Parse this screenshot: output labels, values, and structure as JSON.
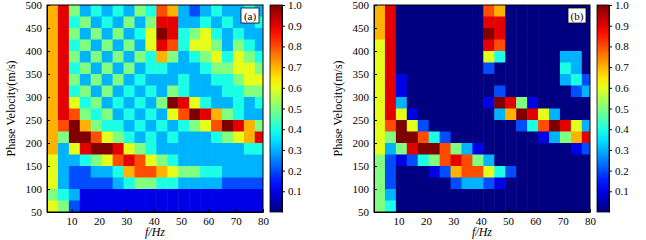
{
  "chart_data": [
    {
      "type": "heatmap",
      "annotation": "(a)",
      "x_label": "f/Hz",
      "y_label": "Phase Velocity(m/s)",
      "xlim": [
        1,
        80
      ],
      "xticks": [
        10,
        20,
        30,
        40,
        50,
        60,
        70,
        80
      ],
      "ylim": [
        50,
        500
      ],
      "yticks": [
        50,
        100,
        150,
        200,
        250,
        300,
        350,
        400,
        450,
        500
      ],
      "colorbar_range": [
        0,
        1
      ],
      "colorbar_ticks": [
        0.1,
        0.2,
        0.3,
        0.4,
        0.5,
        0.6,
        0.7,
        0.8,
        0.9,
        {
          "value": 1,
          "label": "1.0"
        }
      ],
      "x": [
        3,
        7,
        11,
        15,
        19,
        23,
        27,
        31,
        35,
        39,
        43,
        47,
        51,
        55,
        59,
        63,
        67,
        71,
        75,
        79
      ],
      "y": [
        487.5,
        462.5,
        437.5,
        412.5,
        387.5,
        362.5,
        337.5,
        312.5,
        287.5,
        262.5,
        237.5,
        212.5,
        187.5,
        162.5,
        137.5,
        112.5,
        87.5,
        62.5
      ],
      "z": [
        [
          0.7,
          0.9,
          0.5,
          0.3,
          0.4,
          0.3,
          0.4,
          0.3,
          0.5,
          0.4,
          0.8,
          0.7,
          0.3,
          0.2,
          0.3,
          0.4,
          0.3,
          0.3,
          0.4,
          0.3
        ],
        [
          0.7,
          0.9,
          0.4,
          0.5,
          0.3,
          0.4,
          0.3,
          0.5,
          0.3,
          0.5,
          0.9,
          0.9,
          0.3,
          0.3,
          0.4,
          0.3,
          0.4,
          0.3,
          0.3,
          0.4
        ],
        [
          0.7,
          0.9,
          0.5,
          0.3,
          0.5,
          0.3,
          0.5,
          0.3,
          0.4,
          0.6,
          1.0,
          0.9,
          0.4,
          0.5,
          0.6,
          0.4,
          0.3,
          0.4,
          0.3,
          0.3
        ],
        [
          0.7,
          0.9,
          0.4,
          0.5,
          0.3,
          0.5,
          0.3,
          0.5,
          0.3,
          0.6,
          0.9,
          0.8,
          0.4,
          0.6,
          0.6,
          0.5,
          0.3,
          0.5,
          0.4,
          0.3
        ],
        [
          0.7,
          0.9,
          0.5,
          0.3,
          0.5,
          0.3,
          0.5,
          0.3,
          0.5,
          0.4,
          0.7,
          0.5,
          0.3,
          0.4,
          0.5,
          0.6,
          0.4,
          0.6,
          0.5,
          0.4
        ],
        [
          0.7,
          0.9,
          0.4,
          0.5,
          0.3,
          0.5,
          0.3,
          0.5,
          0.3,
          0.4,
          0.4,
          0.3,
          0.3,
          0.3,
          0.4,
          0.5,
          0.5,
          0.6,
          0.6,
          0.5
        ],
        [
          0.7,
          0.9,
          0.5,
          0.3,
          0.5,
          0.3,
          0.5,
          0.3,
          0.4,
          0.3,
          0.3,
          0.3,
          0.4,
          0.3,
          0.3,
          0.4,
          0.4,
          0.5,
          0.6,
          0.6
        ],
        [
          0.7,
          0.9,
          0.4,
          0.5,
          0.3,
          0.5,
          0.3,
          0.4,
          0.3,
          0.4,
          0.3,
          0.5,
          0.4,
          0.3,
          0.3,
          0.3,
          0.4,
          0.4,
          0.5,
          0.5
        ],
        [
          0.7,
          0.9,
          0.6,
          0.4,
          0.5,
          0.3,
          0.4,
          0.3,
          0.4,
          0.3,
          0.5,
          1.0,
          0.9,
          0.6,
          0.4,
          0.3,
          0.3,
          0.4,
          0.3,
          0.4
        ],
        [
          0.7,
          0.9,
          0.8,
          0.5,
          0.4,
          0.5,
          0.3,
          0.4,
          0.3,
          0.4,
          0.3,
          0.6,
          0.8,
          1.0,
          0.9,
          0.7,
          0.5,
          0.4,
          0.3,
          0.3
        ],
        [
          0.7,
          0.8,
          1.0,
          0.7,
          0.5,
          0.4,
          0.4,
          0.3,
          0.4,
          0.3,
          0.4,
          0.3,
          0.4,
          0.5,
          0.6,
          0.8,
          1.0,
          0.9,
          0.7,
          0.5
        ],
        [
          0.7,
          0.5,
          1.0,
          1.0,
          0.8,
          0.6,
          0.5,
          0.4,
          0.3,
          0.4,
          0.3,
          0.4,
          0.3,
          0.3,
          0.3,
          0.4,
          0.5,
          0.6,
          0.7,
          0.9
        ],
        [
          0.7,
          0.3,
          0.6,
          0.9,
          1.0,
          1.0,
          0.9,
          0.6,
          0.5,
          0.4,
          0.3,
          0.3,
          0.3,
          0.3,
          0.3,
          0.3,
          0.3,
          0.3,
          0.4,
          0.4
        ],
        [
          0.6,
          0.3,
          0.3,
          0.4,
          0.5,
          0.6,
          0.8,
          0.9,
          0.8,
          0.6,
          0.5,
          0.4,
          0.3,
          0.3,
          0.3,
          0.3,
          0.3,
          0.3,
          0.3,
          0.3
        ],
        [
          0.6,
          0.3,
          0.2,
          0.2,
          0.3,
          0.3,
          0.4,
          0.7,
          0.8,
          0.8,
          0.7,
          0.6,
          0.5,
          0.5,
          0.4,
          0.4,
          0.3,
          0.3,
          0.3,
          0.3
        ],
        [
          0.6,
          0.3,
          0.2,
          0.2,
          0.2,
          0.2,
          0.3,
          0.4,
          0.5,
          0.5,
          0.4,
          0.4,
          0.3,
          0.3,
          0.3,
          0.3,
          0.2,
          0.2,
          0.2,
          0.2
        ],
        [
          0.5,
          0.4,
          0.3,
          0.1,
          0.1,
          0.1,
          0.1,
          0.1,
          0.1,
          0.1,
          0.1,
          0.1,
          0.1,
          0.1,
          0.1,
          0.1,
          0.1,
          0.1,
          0.1,
          0.1
        ],
        [
          0.6,
          0.5,
          0.2,
          0.1,
          0.1,
          0.1,
          0.1,
          0.1,
          0.1,
          0.1,
          0.1,
          0.1,
          0.1,
          0.1,
          0.1,
          0.1,
          0.1,
          0.1,
          0.1,
          0.1
        ]
      ]
    },
    {
      "type": "heatmap",
      "annotation": "(b)",
      "x_label": "f/Hz",
      "y_label": "Phase Velocity(m/s)",
      "xlim": [
        1,
        80
      ],
      "xticks": [
        10,
        20,
        30,
        40,
        50,
        60,
        70,
        80
      ],
      "ylim": [
        50,
        500
      ],
      "yticks": [
        50,
        100,
        150,
        200,
        250,
        300,
        350,
        400,
        450,
        500
      ],
      "colorbar_range": [
        0,
        1
      ],
      "colorbar_ticks": [
        0.1,
        0.2,
        0.3,
        0.4,
        0.5,
        0.6,
        0.7,
        0.8,
        0.9,
        {
          "value": 1,
          "label": "1.0"
        }
      ],
      "x": [
        3,
        7,
        11,
        15,
        19,
        23,
        27,
        31,
        35,
        39,
        43,
        47,
        51,
        55,
        59,
        63,
        67,
        71,
        75,
        79
      ],
      "y": [
        487.5,
        462.5,
        437.5,
        412.5,
        387.5,
        362.5,
        337.5,
        312.5,
        287.5,
        262.5,
        237.5,
        212.5,
        187.5,
        162.5,
        137.5,
        112.5,
        87.5,
        62.5
      ],
      "z": [
        [
          0.7,
          0.9,
          0,
          0,
          0,
          0,
          0,
          0,
          0,
          0,
          0.8,
          0.7,
          0,
          0,
          0,
          0,
          0,
          0,
          0,
          0
        ],
        [
          0.7,
          0.9,
          0,
          0,
          0,
          0,
          0,
          0,
          0,
          0,
          0.9,
          0.9,
          0,
          0,
          0,
          0,
          0,
          0,
          0,
          0
        ],
        [
          0.7,
          0.9,
          0,
          0,
          0,
          0,
          0,
          0,
          0,
          0,
          1.0,
          0.9,
          0,
          0,
          0,
          0,
          0,
          0,
          0,
          0
        ],
        [
          0.6,
          0.9,
          0,
          0,
          0,
          0,
          0,
          0,
          0,
          0,
          0.9,
          0.8,
          0,
          0,
          0,
          0,
          0,
          0,
          0,
          0
        ],
        [
          0.6,
          0.9,
          0,
          0,
          0,
          0,
          0,
          0,
          0,
          0,
          0.6,
          0.4,
          0,
          0,
          0,
          0,
          0,
          0.3,
          0.3,
          0
        ],
        [
          0.6,
          0.9,
          0,
          0,
          0,
          0,
          0,
          0,
          0,
          0,
          0.2,
          0,
          0,
          0,
          0,
          0,
          0,
          0.4,
          0.3,
          0
        ],
        [
          0.6,
          0.9,
          0.1,
          0,
          0,
          0,
          0,
          0,
          0,
          0,
          0,
          0,
          0,
          0,
          0,
          0,
          0,
          0.3,
          0.4,
          0.2
        ],
        [
          0.6,
          0.9,
          0.1,
          0,
          0,
          0,
          0,
          0,
          0,
          0,
          0,
          0.2,
          0,
          0,
          0,
          0,
          0,
          0,
          0.2,
          0.3
        ],
        [
          0.6,
          0.9,
          0.3,
          0,
          0,
          0,
          0,
          0,
          0,
          0,
          0.1,
          1.0,
          0.9,
          0.5,
          0.1,
          0,
          0,
          0,
          0,
          0
        ],
        [
          0.6,
          0.9,
          0.6,
          0.1,
          0,
          0,
          0,
          0,
          0,
          0,
          0,
          0.3,
          0.7,
          1.0,
          0.9,
          0.6,
          0.3,
          0,
          0,
          0
        ],
        [
          0.6,
          0.8,
          1.0,
          0.6,
          0.2,
          0,
          0,
          0,
          0,
          0,
          0,
          0,
          0,
          0.2,
          0.4,
          0.8,
          1.0,
          0.9,
          0.6,
          0.3
        ],
        [
          0.6,
          0.5,
          1.0,
          1.0,
          0.8,
          0.4,
          0.2,
          0,
          0,
          0,
          0,
          0,
          0,
          0,
          0,
          0.1,
          0.3,
          0.5,
          0.7,
          0.9
        ],
        [
          0.6,
          0.3,
          0.5,
          0.9,
          1.0,
          1.0,
          0.8,
          0.5,
          0.3,
          0.1,
          0,
          0,
          0,
          0,
          0,
          0,
          0,
          0,
          0.1,
          0.2
        ],
        [
          0.5,
          0.2,
          0.1,
          0.2,
          0.4,
          0.5,
          0.8,
          0.9,
          0.8,
          0.5,
          0.3,
          0,
          0,
          0,
          0,
          0,
          0,
          0,
          0,
          0
        ],
        [
          0.5,
          0.2,
          0,
          0,
          0,
          0.1,
          0.2,
          0.7,
          0.8,
          0.8,
          0.6,
          0.4,
          0.2,
          0,
          0,
          0,
          0,
          0,
          0,
          0
        ],
        [
          0.5,
          0.2,
          0,
          0,
          0,
          0,
          0,
          0.2,
          0.3,
          0.3,
          0.2,
          0.1,
          0,
          0,
          0,
          0,
          0,
          0,
          0,
          0
        ],
        [
          0.5,
          0.3,
          0,
          0,
          0,
          0,
          0,
          0,
          0,
          0,
          0,
          0,
          0,
          0,
          0,
          0,
          0,
          0,
          0,
          0
        ],
        [
          0.5,
          0.4,
          0,
          0,
          0,
          0,
          0,
          0,
          0,
          0,
          0,
          0,
          0,
          0,
          0,
          0,
          0,
          0,
          0,
          0
        ]
      ]
    }
  ]
}
